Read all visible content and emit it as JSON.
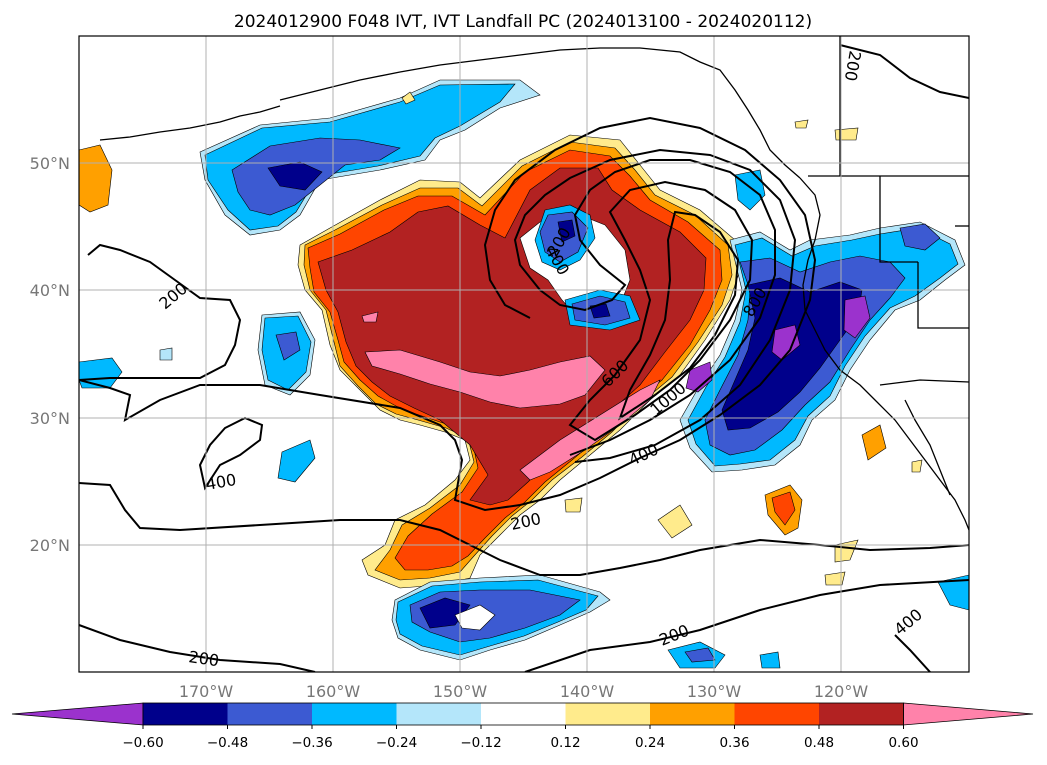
{
  "title": "2024012900 F048 IVT, IVT Landfall PC (2024013100 - 2024020112)",
  "lat_labels": [
    "50°N",
    "40°N",
    "30°N",
    "20°N"
  ],
  "lon_labels": [
    "170°W",
    "160°W",
    "150°W",
    "140°W",
    "130°W",
    "120°W"
  ],
  "contour_labels": [
    "200",
    "200",
    "200",
    "200",
    "200",
    "200",
    "400",
    "400",
    "400",
    "400",
    "600",
    "800",
    "1000"
  ],
  "colorbar": {
    "ticks": [
      "−0.60",
      "−0.48",
      "−0.36",
      "−0.24",
      "−0.12",
      "0.12",
      "0.24",
      "0.36",
      "0.48",
      "0.60"
    ],
    "colors": [
      "#9b32cd",
      "#00008b",
      "#3c5ad2",
      "#00b9ff",
      "#b4e6fa",
      "#ffffff",
      "#ffeb8c",
      "#ffa000",
      "#ff4500",
      "#b22222",
      "#ff82aa"
    ]
  },
  "colors": {
    "strong_neg": "#9b32cd",
    "navy": "#00008b",
    "blue": "#3c5ad2",
    "cyan": "#00b9ff",
    "light_blue": "#b4e6fa",
    "yellow": "#ffeb8c",
    "orange": "#ffa000",
    "red_orange": "#ff4500",
    "dark_red": "#b22222",
    "pink": "#ff82aa"
  }
}
